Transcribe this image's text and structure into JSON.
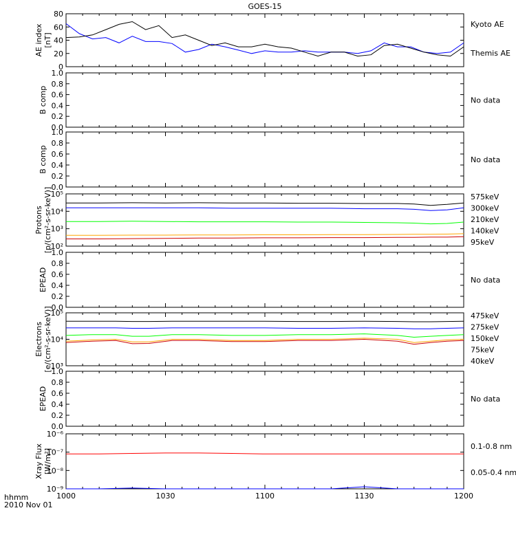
{
  "title": "GOES-15",
  "footer": {
    "line1": "hhmm",
    "line2": "2010 Nov 01"
  },
  "x_ticks": [
    "1000",
    "1030",
    "1100",
    "1130",
    "1200"
  ],
  "colors": {
    "black": "#000000",
    "blue": "#0000ff",
    "green": "#00ff00",
    "orange": "#ffa500",
    "darkred": "#cc0000",
    "red": "#ff0000"
  },
  "chart_data": [
    {
      "type": "line",
      "ylabel": "AE index [nT]",
      "yticks": [
        "0",
        "20",
        "40",
        "60",
        "80"
      ],
      "ylim": [
        0,
        80
      ],
      "x": [
        1000,
        1004,
        1008,
        1012,
        1016,
        1020,
        1024,
        1028,
        1032,
        1036,
        1040,
        1044,
        1048,
        1052,
        1056,
        1100,
        1104,
        1108,
        1112,
        1116,
        1120,
        1124,
        1128,
        1132,
        1136,
        1140,
        1144,
        1148,
        1152,
        1156,
        1200
      ],
      "series": [
        {
          "name": "Kyoto AE",
          "color": "#0000ff",
          "values": [
            65,
            50,
            42,
            44,
            36,
            46,
            38,
            38,
            35,
            22,
            26,
            34,
            30,
            25,
            20,
            24,
            22,
            22,
            24,
            22,
            22,
            22,
            20,
            24,
            36,
            30,
            30,
            22,
            20,
            22,
            36
          ]
        },
        {
          "name": "Themis AE",
          "color": "#000000",
          "values": [
            44,
            45,
            48,
            56,
            64,
            68,
            56,
            62,
            44,
            48,
            40,
            32,
            36,
            30,
            30,
            34,
            30,
            28,
            22,
            16,
            22,
            22,
            16,
            18,
            32,
            34,
            28,
            22,
            18,
            16,
            30
          ]
        }
      ],
      "legend": [
        "Kyoto AE",
        "Themis AE"
      ]
    },
    {
      "type": "line",
      "ylabel": "B comp",
      "yticks": [
        "0.0",
        "0.2",
        "0.4",
        "0.6",
        "0.8",
        "1.0"
      ],
      "ylim": [
        0,
        1
      ],
      "note": "No data"
    },
    {
      "type": "line",
      "ylabel": "B comp",
      "yticks": [
        "0.0",
        "0.2",
        "0.4",
        "0.6",
        "0.8",
        "1.0"
      ],
      "ylim": [
        0,
        1
      ],
      "note": "No data"
    },
    {
      "type": "line",
      "ylabel": "Protons [p/(cm²-s-sr-keV)]",
      "yscale": "log",
      "yticks": [
        "10²",
        "10³",
        "10⁴",
        "10⁵"
      ],
      "ylim": [
        100,
        100000
      ],
      "x": [
        1000,
        1010,
        1020,
        1030,
        1040,
        1050,
        1100,
        1110,
        1120,
        1130,
        1140,
        1145,
        1150,
        1155,
        1200
      ],
      "series": [
        {
          "name": "575keV",
          "color": "#000000",
          "values": [
            30000,
            30000,
            31000,
            30000,
            31000,
            30000,
            30000,
            29000,
            29000,
            28000,
            28000,
            26000,
            22000,
            25000,
            30000
          ]
        },
        {
          "name": "300keV",
          "color": "#0000ff",
          "values": [
            16000,
            16000,
            16000,
            16000,
            16000,
            15000,
            15000,
            15000,
            15000,
            14000,
            14000,
            13000,
            11000,
            12000,
            16000
          ]
        },
        {
          "name": "210keV",
          "color": "#00ff00",
          "values": [
            2600,
            2600,
            2700,
            2600,
            2500,
            2500,
            2500,
            2400,
            2400,
            2300,
            2200,
            2100,
            1900,
            2000,
            2400
          ]
        },
        {
          "name": "140keV",
          "color": "#ffa500",
          "values": [
            420,
            420,
            430,
            430,
            440,
            440,
            450,
            450,
            460,
            460,
            470,
            480,
            480,
            490,
            520
          ]
        },
        {
          "name": "95keV",
          "color": "#cc0000",
          "values": [
            260,
            260,
            270,
            280,
            290,
            290,
            300,
            300,
            310,
            310,
            320,
            320,
            330,
            330,
            350
          ]
        }
      ],
      "legend": [
        {
          "label": "575keV",
          "color": "#cc0000"
        },
        {
          "label": "300keV",
          "color": "#ffa500"
        },
        {
          "label": "210keV",
          "color": "#00c000"
        },
        {
          "label": "140keV",
          "color": "#0000ff"
        },
        {
          "label": "95keV",
          "color": "#000000"
        }
      ]
    },
    {
      "type": "line",
      "ylabel": "EPEAD",
      "yticks": [
        "0.0",
        "0.2",
        "0.4",
        "0.6",
        "0.8",
        "1.0"
      ],
      "ylim": [
        0,
        1
      ],
      "note": "No data"
    },
    {
      "type": "line",
      "ylabel": "Electrons [e/(cm²-s-sr-keV)]",
      "yscale": "log",
      "yticks": [
        "10³",
        "10⁴",
        "10⁵"
      ],
      "ylim": [
        1000,
        100000
      ],
      "x": [
        1000,
        1008,
        1015,
        1020,
        1025,
        1032,
        1040,
        1050,
        1100,
        1110,
        1120,
        1130,
        1140,
        1145,
        1150,
        1155,
        1200
      ],
      "series": [
        {
          "name": "475keV",
          "color": "#000000",
          "values": [
            48000,
            48000,
            48000,
            47000,
            47000,
            48000,
            48000,
            48000,
            48000,
            47000,
            47000,
            48000,
            47000,
            46000,
            46000,
            47000,
            48000
          ]
        },
        {
          "name": "275keV",
          "color": "#0000ff",
          "values": [
            27000,
            27000,
            27000,
            26000,
            26000,
            27000,
            27000,
            27000,
            27000,
            26000,
            26000,
            27000,
            26000,
            25000,
            25000,
            26000,
            27000
          ]
        },
        {
          "name": "150keV",
          "color": "#00ff00",
          "values": [
            14000,
            15000,
            15000,
            13000,
            13000,
            15000,
            15000,
            14000,
            14000,
            15000,
            15000,
            16000,
            14000,
            12000,
            13000,
            14000,
            15000
          ]
        },
        {
          "name": "75keV",
          "color": "#ffa500",
          "values": [
            8500,
            9500,
            10000,
            8000,
            8000,
            10000,
            10000,
            9000,
            9000,
            10000,
            10000,
            11000,
            10000,
            7500,
            8500,
            9500,
            10000
          ]
        },
        {
          "name": "40keV",
          "color": "#cc0000",
          "values": [
            7500,
            8500,
            9000,
            6800,
            7000,
            9000,
            9000,
            8200,
            8200,
            9000,
            9000,
            10000,
            8500,
            6500,
            7500,
            8500,
            9000
          ]
        }
      ],
      "legend": [
        {
          "label": "475keV",
          "color": "#cc0000"
        },
        {
          "label": "275keV",
          "color": "#ffa500"
        },
        {
          "label": "150keV",
          "color": "#00c000"
        },
        {
          "label": "75keV",
          "color": "#0000ff"
        },
        {
          "label": "40keV",
          "color": "#000000"
        }
      ]
    },
    {
      "type": "line",
      "ylabel": "EPEAD",
      "yticks": [
        "0.0",
        "0.2",
        "0.4",
        "0.6",
        "0.8",
        "1.0"
      ],
      "ylim": [
        0,
        1
      ],
      "note": "No data"
    },
    {
      "type": "line",
      "ylabel": "Xray Flux [W/m²]",
      "yscale": "log",
      "yticks": [
        "10⁻⁹",
        "10⁻⁸",
        "10⁻⁷",
        "10⁻⁶"
      ],
      "ylim": [
        1e-09,
        1e-06
      ],
      "x": [
        1000,
        1010,
        1020,
        1030,
        1040,
        1050,
        1100,
        1110,
        1120,
        1130,
        1140,
        1150,
        1200
      ],
      "series": [
        {
          "name": "0.1-0.8 nm",
          "color": "#ff0000",
          "values": [
            8e-08,
            8e-08,
            8.5e-08,
            9e-08,
            9e-08,
            8.5e-08,
            8e-08,
            8e-08,
            8e-08,
            8e-08,
            8e-08,
            8e-08,
            8e-08
          ]
        },
        {
          "name": "0.05-0.4 nm",
          "color": "#0000ff",
          "values": [
            1e-09,
            1e-09,
            1.1e-09,
            1e-09,
            1e-09,
            1e-09,
            1e-09,
            1e-09,
            1e-09,
            1.3e-09,
            1e-09,
            1e-09,
            1e-09
          ]
        }
      ],
      "legend": [
        {
          "label": "0.1-0.8 nm",
          "color": "#ff0000"
        },
        {
          "label": "0.05-0.4 nm",
          "color": "#0000ff"
        }
      ]
    }
  ]
}
